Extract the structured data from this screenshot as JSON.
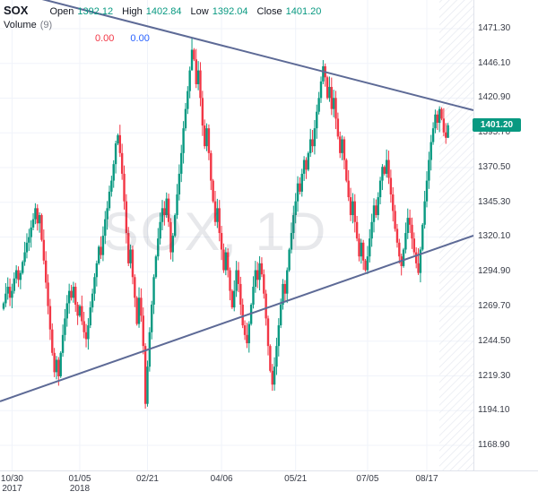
{
  "header": {
    "symbol": "SOX",
    "fields": [
      {
        "label": "Open",
        "value": "1392.12"
      },
      {
        "label": "High",
        "value": "1402.84"
      },
      {
        "label": "Low",
        "value": "1392.04"
      },
      {
        "label": "Close",
        "value": "1401.20"
      }
    ],
    "volume": {
      "label": "Volume",
      "param": "(9)",
      "values": [
        {
          "text": "0.00",
          "color": "#f23645"
        },
        {
          "text": "0.00",
          "color": "#2962ff"
        }
      ]
    }
  },
  "watermark": "SOX, 1D",
  "price_badge": {
    "text": "1401.20",
    "color": "#089981"
  },
  "colors": {
    "up": "#089981",
    "down": "#f23645",
    "trendline": "#5d6a96",
    "grid": "#f0f3fa",
    "axis_text": "#363a45",
    "hatch": "#e4e7ef",
    "axis_border": "#e0e3eb"
  },
  "chart_data": {
    "type": "candlestick",
    "symbol": "SOX",
    "timeframe": "1D",
    "title": "SOX, 1D",
    "y_axis": {
      "ticks": [
        "1471.30",
        "1446.10",
        "1420.90",
        "1395.70",
        "1370.50",
        "1345.30",
        "1320.10",
        "1294.90",
        "1269.70",
        "1244.50",
        "1219.30",
        "1194.10",
        "1168.90"
      ],
      "tick_step": 25.2,
      "ylim": [
        1150.7,
        1492.1
      ]
    },
    "x_axis": {
      "ticks": [
        {
          "index": 4,
          "label": "10/30",
          "sub": "2017"
        },
        {
          "index": 36,
          "label": "01/05",
          "sub": "2018"
        },
        {
          "index": 68,
          "label": "02/21"
        },
        {
          "index": 103,
          "label": "04/06"
        },
        {
          "index": 138,
          "label": "05/21"
        },
        {
          "index": 172,
          "label": "07/05"
        },
        {
          "index": 200,
          "label": "08/17"
        }
      ]
    },
    "first_open": 1268,
    "closes": [
      1272,
      1279,
      1284,
      1276,
      1281,
      1290,
      1296,
      1289,
      1294,
      1302,
      1309,
      1316,
      1320,
      1327,
      1333,
      1341,
      1330,
      1336,
      1318,
      1303,
      1287,
      1270,
      1253,
      1236,
      1222,
      1231,
      1219,
      1236,
      1249,
      1261,
      1272,
      1281,
      1276,
      1284,
      1271,
      1263,
      1270,
      1259,
      1251,
      1246,
      1256,
      1269,
      1279,
      1291,
      1301,
      1313,
      1307,
      1321,
      1333,
      1341,
      1353,
      1361,
      1373,
      1388,
      1394,
      1381,
      1366,
      1346,
      1323,
      1301,
      1311,
      1291,
      1276,
      1257,
      1276,
      1263,
      1241,
      1199,
      1226,
      1251,
      1271,
      1291,
      1306,
      1319,
      1331,
      1341,
      1336,
      1348,
      1331,
      1309,
      1321,
      1336,
      1351,
      1366,
      1381,
      1399,
      1413,
      1426,
      1441,
      1456,
      1449,
      1431,
      1441,
      1421,
      1401,
      1386,
      1399,
      1381,
      1361,
      1346,
      1331,
      1341,
      1323,
      1311,
      1296,
      1309,
      1296,
      1281,
      1269,
      1281,
      1296,
      1286,
      1271,
      1256,
      1249,
      1243,
      1257,
      1271,
      1284,
      1296,
      1289,
      1301,
      1293,
      1279,
      1261,
      1241,
      1223,
      1213,
      1226,
      1241,
      1256,
      1271,
      1286,
      1279,
      1296,
      1311,
      1323,
      1336,
      1346,
      1359,
      1353,
      1366,
      1376,
      1369,
      1381,
      1391,
      1386,
      1399,
      1411,
      1421,
      1433,
      1444,
      1436,
      1421,
      1429,
      1413,
      1421,
      1406,
      1393,
      1381,
      1391,
      1376,
      1361,
      1349,
      1336,
      1346,
      1331,
      1319,
      1306,
      1316,
      1303,
      1296,
      1306,
      1319,
      1331,
      1343,
      1336,
      1349,
      1361,
      1371,
      1366,
      1376,
      1363,
      1351,
      1339,
      1326,
      1316,
      1306,
      1299,
      1311,
      1323,
      1334,
      1329,
      1319,
      1309,
      1301,
      1294,
      1311,
      1329,
      1346,
      1361,
      1376,
      1389,
      1399,
      1409,
      1403,
      1413,
      1406,
      1396,
      1392.1,
      1401.2
    ],
    "wick_overrides": {
      "67": [
        1243,
        1195.5
      ],
      "89": [
        1464.5,
        1441
      ],
      "115": [
        1258,
        1239.5
      ],
      "127": [
        1228,
        1208.5
      ],
      "151": [
        1448.5,
        1431
      ],
      "196": [
        1312,
        1292.5
      ],
      "210": [
        1402.84,
        1392.04
      ]
    },
    "last_candle": {
      "open": 1392.12,
      "high": 1402.84,
      "low": 1392.04,
      "close": 1401.2
    },
    "trendlines": [
      {
        "name": "trendline-upper-descending",
        "price_at_left": 1500.6,
        "price_at_right": 1412.1
      },
      {
        "name": "trendline-lower-ascending",
        "price_at_left": 1200.8,
        "price_at_right": 1321.1
      }
    ]
  }
}
